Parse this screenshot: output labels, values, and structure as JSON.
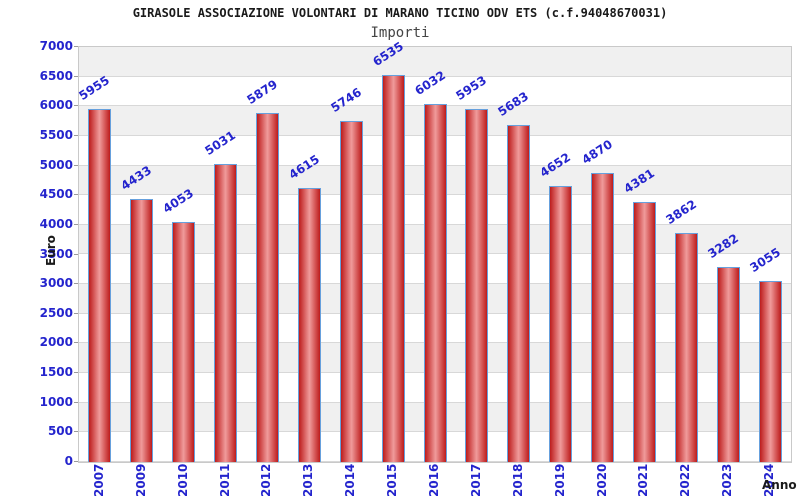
{
  "chart_data": {
    "type": "bar",
    "title": "GIRASOLE ASSOCIAZIONE VOLONTARI DI MARANO TICINO ODV ETS (c.f.94048670031)",
    "subtitle": "Importi",
    "xlabel": "Anno",
    "ylabel": "Euro",
    "categories": [
      "2007",
      "2009",
      "2010",
      "2011",
      "2012",
      "2013",
      "2014",
      "2015",
      "2016",
      "2017",
      "2018",
      "2019",
      "2020",
      "2021",
      "2022",
      "2023",
      "2024"
    ],
    "values": [
      5955,
      4433,
      4053,
      5031,
      5879,
      4615,
      5746,
      6535,
      6032,
      5953,
      5683,
      4652,
      4870,
      4381,
      3862,
      3282,
      3055
    ],
    "ylim": [
      0,
      7000
    ],
    "ytick_step": 500,
    "grid": "horizontal-bands-alternating",
    "legend": "none",
    "colors": {
      "label_blue": "#2424cd",
      "band_gray": "#f0f0f0",
      "band_white": "#ffffff",
      "gridline": "#d8d8d8",
      "plot_frame": "#c9c9c9",
      "bar_edge_blue": "#66a0dd",
      "bar_red_dark": "#bd1c1c",
      "bar_red_light": "#f09b9b",
      "title_color": "#1a1a1a",
      "subtitle_color": "#444444"
    }
  }
}
